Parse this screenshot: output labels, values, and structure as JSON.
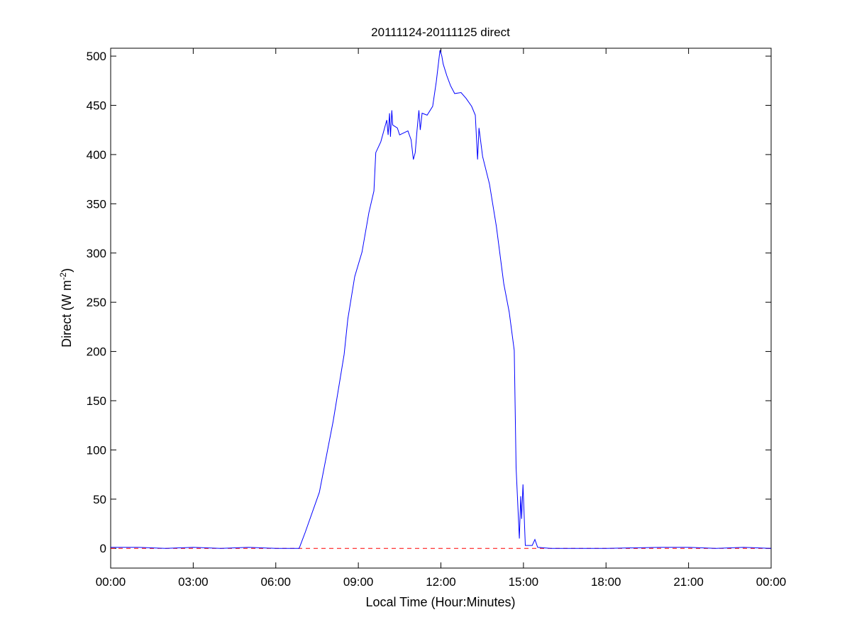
{
  "chart_data": {
    "type": "line",
    "title": "20111124-20111125 direct",
    "xlabel": "Local Time (Hour:Minutes)",
    "ylabel": "Direct (W m",
    "ylabel_sup": "-2",
    "ylabel_close": ")",
    "xticks": [
      "00:00",
      "03:00",
      "06:00",
      "09:00",
      "12:00",
      "15:00",
      "18:00",
      "21:00",
      "00:00"
    ],
    "yticks": [
      "0",
      "50",
      "100",
      "150",
      "200",
      "250",
      "300",
      "350",
      "400",
      "450",
      "500"
    ],
    "ylim": [
      -20,
      508
    ],
    "xlim_hours": [
      0,
      24
    ],
    "grid": false,
    "reference_line": {
      "y": 0,
      "color": "#ff0000",
      "style": "dashed"
    },
    "series": [
      {
        "color": "#0000ff",
        "points": [
          [
            "00:00",
            1
          ],
          [
            "01:00",
            1
          ],
          [
            "02:00",
            0
          ],
          [
            "03:00",
            1
          ],
          [
            "04:00",
            0
          ],
          [
            "05:00",
            1
          ],
          [
            "06:00",
            0
          ],
          [
            "06:51",
            0
          ],
          [
            "07:04",
            16
          ],
          [
            "07:35",
            57
          ],
          [
            "08:05",
            129
          ],
          [
            "08:29",
            197
          ],
          [
            "08:37",
            233
          ],
          [
            "08:52",
            276
          ],
          [
            "09:08",
            301
          ],
          [
            "09:23",
            341
          ],
          [
            "09:34",
            363
          ],
          [
            "09:38",
            402
          ],
          [
            "09:49",
            413
          ],
          [
            "10:02",
            435
          ],
          [
            "10:05",
            420
          ],
          [
            "10:08",
            442
          ],
          [
            "10:10",
            418
          ],
          [
            "10:13",
            445
          ],
          [
            "10:15",
            430
          ],
          [
            "10:25",
            427
          ],
          [
            "10:30",
            420
          ],
          [
            "10:48",
            424
          ],
          [
            "10:55",
            415
          ],
          [
            "11:00",
            395
          ],
          [
            "11:04",
            402
          ],
          [
            "11:08",
            425
          ],
          [
            "11:12",
            445
          ],
          [
            "11:15",
            425
          ],
          [
            "11:19",
            442
          ],
          [
            "11:30",
            440
          ],
          [
            "11:42",
            449
          ],
          [
            "11:50",
            474
          ],
          [
            "11:58",
            506
          ],
          [
            "12:02",
            500
          ],
          [
            "12:05",
            492
          ],
          [
            "12:13",
            480
          ],
          [
            "12:21",
            470
          ],
          [
            "12:30",
            462
          ],
          [
            "12:44",
            463
          ],
          [
            "12:55",
            457
          ],
          [
            "13:07",
            449
          ],
          [
            "13:15",
            440
          ],
          [
            "13:20",
            395
          ],
          [
            "13:23",
            427
          ],
          [
            "13:31",
            398
          ],
          [
            "13:46",
            370
          ],
          [
            "14:01",
            327
          ],
          [
            "14:17",
            269
          ],
          [
            "14:29",
            240
          ],
          [
            "14:40",
            201
          ],
          [
            "14:44",
            82
          ],
          [
            "14:51",
            10
          ],
          [
            "14:54",
            53
          ],
          [
            "14:56",
            30
          ],
          [
            "14:59",
            65
          ],
          [
            "15:04",
            3
          ],
          [
            "15:19",
            3
          ],
          [
            "15:25",
            9
          ],
          [
            "15:31",
            1
          ],
          [
            "16:00",
            0
          ],
          [
            "18:00",
            0
          ],
          [
            "20:00",
            1
          ],
          [
            "21:00",
            1
          ],
          [
            "22:00",
            0
          ],
          [
            "23:00",
            1
          ],
          [
            "24:00",
            0
          ]
        ]
      }
    ]
  }
}
